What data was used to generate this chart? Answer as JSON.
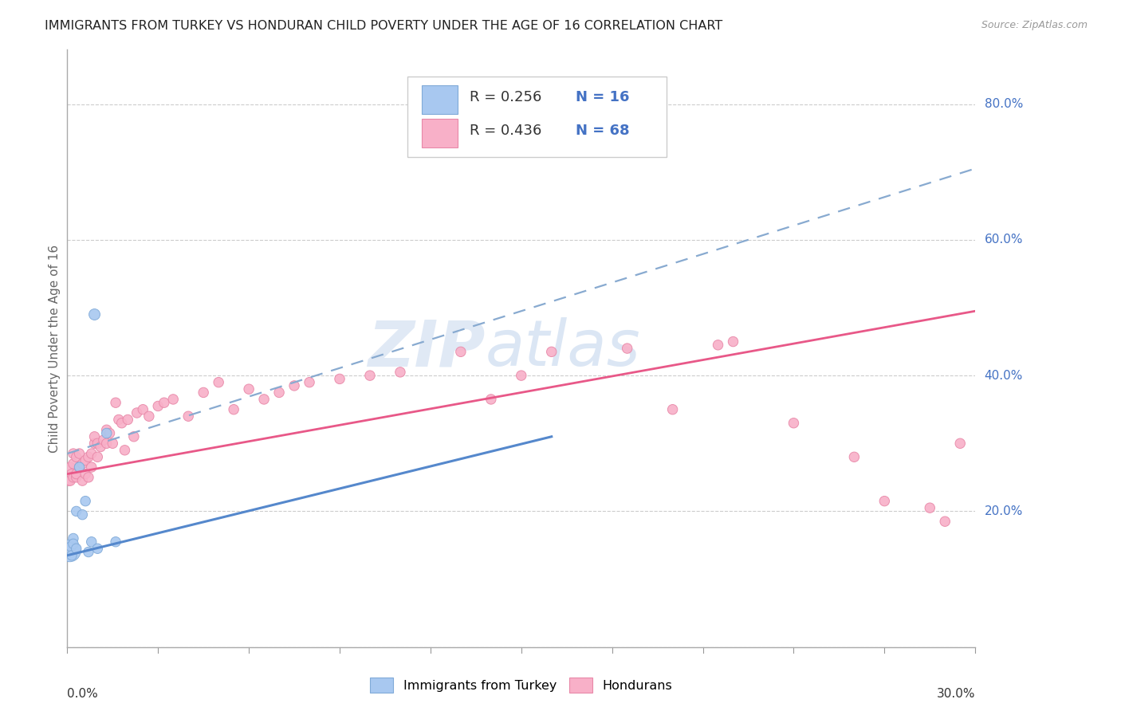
{
  "title": "IMMIGRANTS FROM TURKEY VS HONDURAN CHILD POVERTY UNDER THE AGE OF 16 CORRELATION CHART",
  "source": "Source: ZipAtlas.com",
  "ylabel": "Child Poverty Under the Age of 16",
  "series1_label": "Immigrants from Turkey",
  "series2_label": "Hondurans",
  "series1_color": "#a8c8f0",
  "series1_edge": "#80aad8",
  "series2_color": "#f8b0c8",
  "series2_edge": "#e888a8",
  "trend_blue_color": "#5588cc",
  "trend_pink_color": "#e85888",
  "trend_dash_color": "#88aad0",
  "xlim": [
    0,
    0.3
  ],
  "ylim": [
    0,
    0.88
  ],
  "yticks": [
    0.0,
    0.2,
    0.4,
    0.6,
    0.8
  ],
  "ytick_labels": [
    "",
    "20.0%",
    "40.0%",
    "60.0%",
    "80.0%"
  ],
  "blue_x": [
    0.0008,
    0.0012,
    0.0015,
    0.002,
    0.002,
    0.003,
    0.003,
    0.004,
    0.005,
    0.006,
    0.007,
    0.008,
    0.009,
    0.01,
    0.013,
    0.016
  ],
  "blue_y": [
    0.142,
    0.148,
    0.135,
    0.16,
    0.152,
    0.145,
    0.2,
    0.265,
    0.195,
    0.215,
    0.14,
    0.155,
    0.49,
    0.145,
    0.315,
    0.155
  ],
  "blue_sizes": [
    400,
    80,
    80,
    80,
    80,
    80,
    80,
    80,
    80,
    80,
    80,
    80,
    100,
    80,
    80,
    80
  ],
  "pink_x": [
    0.0005,
    0.001,
    0.001,
    0.0015,
    0.002,
    0.002,
    0.002,
    0.003,
    0.003,
    0.003,
    0.004,
    0.004,
    0.005,
    0.005,
    0.006,
    0.006,
    0.007,
    0.007,
    0.008,
    0.008,
    0.009,
    0.009,
    0.01,
    0.01,
    0.011,
    0.012,
    0.013,
    0.013,
    0.014,
    0.015,
    0.016,
    0.017,
    0.018,
    0.019,
    0.02,
    0.022,
    0.023,
    0.025,
    0.027,
    0.03,
    0.032,
    0.035,
    0.04,
    0.045,
    0.05,
    0.055,
    0.06,
    0.065,
    0.07,
    0.075,
    0.08,
    0.09,
    0.1,
    0.11,
    0.13,
    0.14,
    0.15,
    0.16,
    0.185,
    0.2,
    0.215,
    0.22,
    0.24,
    0.26,
    0.27,
    0.285,
    0.29,
    0.295
  ],
  "pink_y": [
    0.245,
    0.245,
    0.265,
    0.255,
    0.25,
    0.27,
    0.285,
    0.25,
    0.255,
    0.28,
    0.265,
    0.285,
    0.245,
    0.27,
    0.255,
    0.275,
    0.25,
    0.28,
    0.265,
    0.285,
    0.3,
    0.31,
    0.28,
    0.3,
    0.295,
    0.305,
    0.3,
    0.32,
    0.315,
    0.3,
    0.36,
    0.335,
    0.33,
    0.29,
    0.335,
    0.31,
    0.345,
    0.35,
    0.34,
    0.355,
    0.36,
    0.365,
    0.34,
    0.375,
    0.39,
    0.35,
    0.38,
    0.365,
    0.375,
    0.385,
    0.39,
    0.395,
    0.4,
    0.405,
    0.435,
    0.365,
    0.4,
    0.435,
    0.44,
    0.35,
    0.445,
    0.45,
    0.33,
    0.28,
    0.215,
    0.205,
    0.185,
    0.3
  ],
  "pink_sizes": [
    80,
    80,
    80,
    80,
    80,
    80,
    80,
    80,
    80,
    80,
    80,
    80,
    80,
    80,
    80,
    80,
    80,
    80,
    80,
    80,
    80,
    80,
    80,
    80,
    80,
    80,
    80,
    80,
    80,
    80,
    80,
    80,
    80,
    80,
    80,
    80,
    80,
    80,
    80,
    80,
    80,
    80,
    80,
    80,
    80,
    80,
    80,
    80,
    80,
    80,
    80,
    80,
    80,
    80,
    80,
    80,
    80,
    80,
    80,
    80,
    80,
    80,
    80,
    80,
    80,
    80,
    80,
    80
  ],
  "blue_trend_x0": 0.0,
  "blue_trend_y0": 0.135,
  "blue_trend_x1": 0.16,
  "blue_trend_y1": 0.31,
  "pink_trend_x0": 0.0,
  "pink_trend_y0": 0.255,
  "pink_trend_x1": 0.3,
  "pink_trend_y1": 0.495,
  "dash_trend_x0": 0.0,
  "dash_trend_y0": 0.285,
  "dash_trend_x1": 0.3,
  "dash_trend_y1": 0.705,
  "legend_r1": "R = 0.256",
  "legend_n1": "N = 16",
  "legend_r2": "R = 0.436",
  "legend_n2": "N = 68",
  "watermark_zip": "ZIP",
  "watermark_atlas": "atlas",
  "bg_color": "#ffffff",
  "grid_color": "#cccccc",
  "spine_color": "#aaaaaa",
  "title_fontsize": 11.5,
  "label_fontsize": 11,
  "axis_label_color": "#4472c4",
  "ylabel_color": "#666666"
}
